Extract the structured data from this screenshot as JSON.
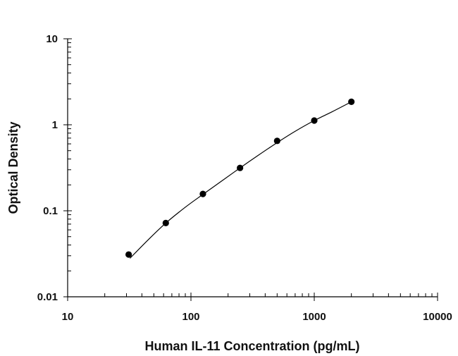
{
  "chart_data": {
    "type": "scatter",
    "xlabel": "Human IL-11 Concentration (pg/mL)",
    "ylabel": "Optical Density",
    "xscale": "log",
    "yscale": "log",
    "xlim": [
      10,
      10000
    ],
    "ylim": [
      0.01,
      10
    ],
    "x_tick_labels": [
      "10",
      "100",
      "1000",
      "10000"
    ],
    "y_tick_labels": [
      "0.01",
      "0.1",
      "1",
      "10"
    ],
    "grid": false,
    "legend": "none",
    "series": [
      {
        "x": [
          31.25,
          62.5,
          125,
          250,
          500,
          1000,
          2000
        ],
        "y": [
          0.031,
          0.072,
          0.157,
          0.315,
          0.65,
          1.12,
          1.85
        ]
      }
    ],
    "fit_curve": {
      "x": [
        32,
        45,
        62.5,
        90,
        125,
        180,
        250,
        350,
        500,
        700,
        1000,
        1400,
        2000
      ],
      "y": [
        0.028,
        0.046,
        0.072,
        0.11,
        0.155,
        0.225,
        0.315,
        0.44,
        0.62,
        0.84,
        1.12,
        1.42,
        1.85
      ]
    },
    "colors": {
      "points": "#000000",
      "curve": "#000000",
      "axes": "#000000"
    }
  }
}
